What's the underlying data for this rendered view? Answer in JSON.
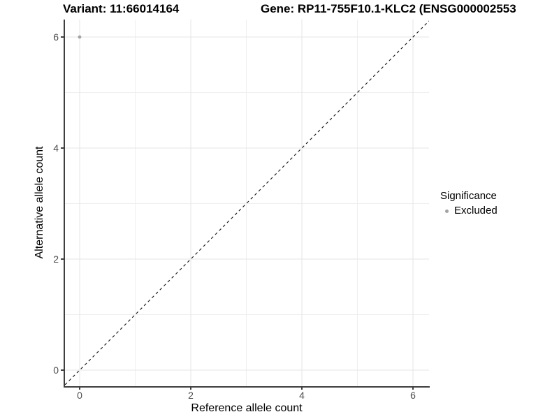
{
  "titles": {
    "variant": "Variant: 11:66014164",
    "gene": "Gene: RP11-755F10.1-KLC2 (ENSG000002553"
  },
  "chart_data": {
    "type": "scatter",
    "xlabel": "Reference allele count",
    "ylabel": "Alternative allele count",
    "x_ticks": [
      0,
      2,
      4,
      6
    ],
    "y_ticks": [
      0,
      2,
      4,
      6
    ],
    "x_minor_ticks": [
      1,
      3,
      5
    ],
    "y_minor_ticks": [
      1,
      3,
      5
    ],
    "xlim": [
      -0.264,
      6.289
    ],
    "ylim": [
      -0.289,
      6.314
    ],
    "grid": "major and minor, light grey on white",
    "points": [
      {
        "x": 0,
        "y": 6,
        "significance": "Excluded"
      }
    ],
    "reference_line": {
      "slope": 1,
      "intercept": 0,
      "style": "dashed",
      "color": "#111111"
    },
    "legend": {
      "title": "Significance",
      "position": "right",
      "entries": [
        {
          "label": "Excluded",
          "color": "#a3a3a3"
        }
      ]
    }
  },
  "colors": {
    "point": "#a3a3a3",
    "grid_major": "#e4e4e4",
    "grid_minor": "#efefef",
    "axis_line": "#3f3f3f",
    "tick_label": "#4d4d4d",
    "reference_line": "#111111"
  }
}
